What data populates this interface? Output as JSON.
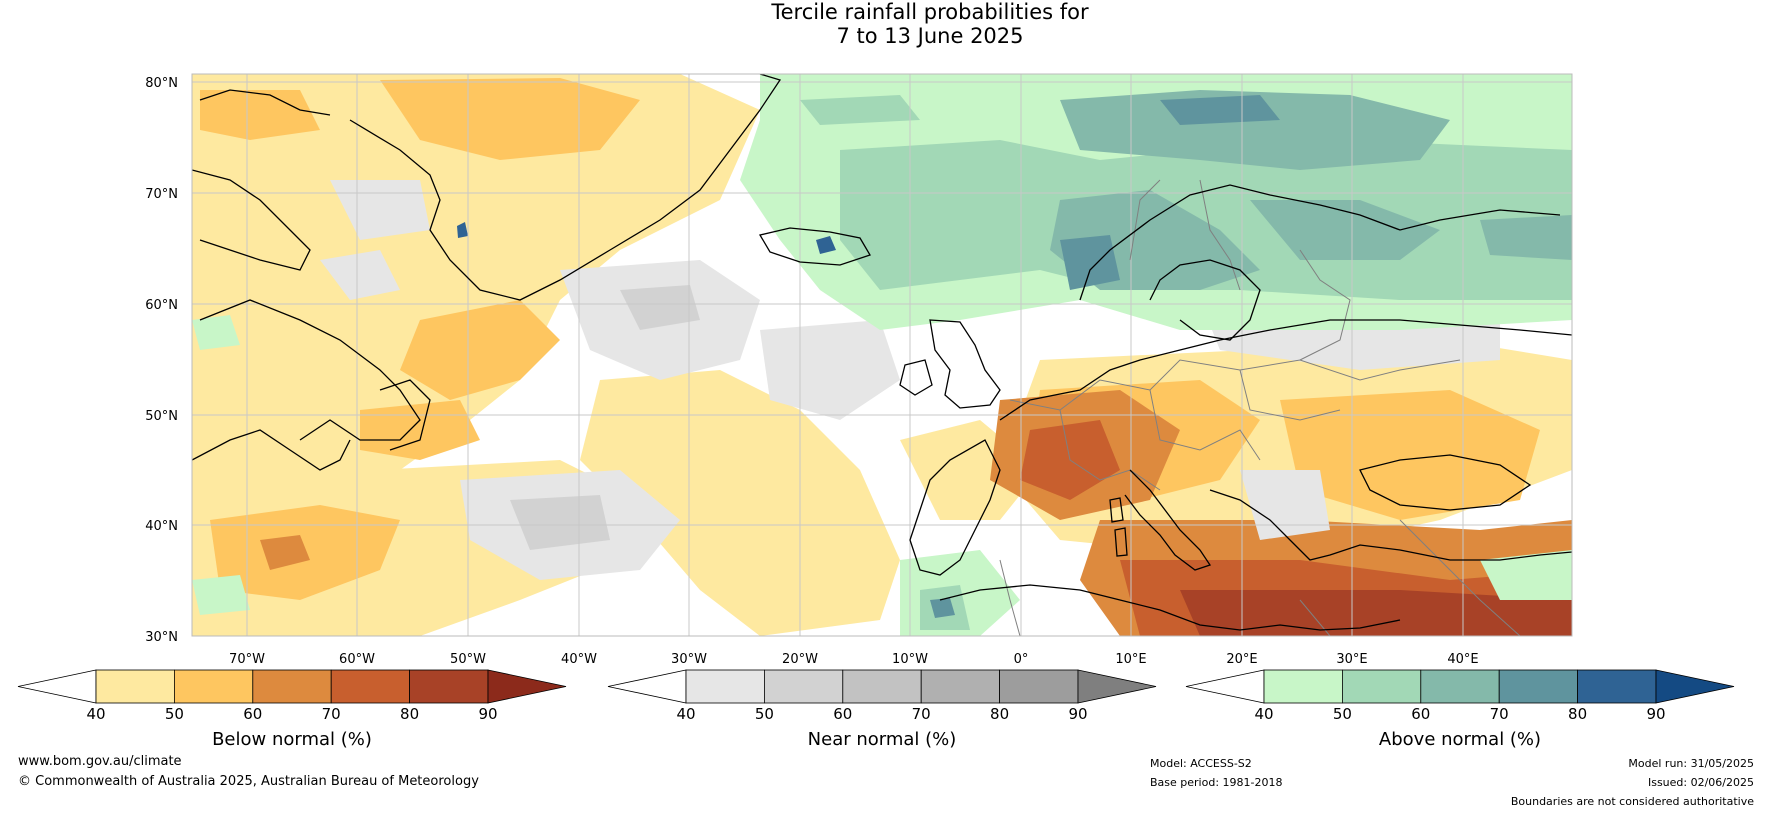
{
  "title": {
    "line1": "Tercile rainfall probabilities for",
    "line2": "7 to 13 June 2025"
  },
  "map": {
    "lat_labels": [
      "80°N",
      "70°N",
      "60°N",
      "50°N",
      "40°N",
      "30°N"
    ],
    "lon_labels": [
      "70°W",
      "60°W",
      "50°W",
      "40°W",
      "30°W",
      "20°W",
      "10°W",
      "0°",
      "10°E",
      "20°E",
      "30°E",
      "40°E"
    ],
    "extent": {
      "lon": [
        -80,
        45
      ],
      "lat": [
        30,
        81
      ]
    }
  },
  "colorbars": [
    {
      "id": "below",
      "label": "Below normal (%)",
      "ticks": [
        "40",
        "50",
        "60",
        "70",
        "80",
        "90"
      ],
      "colors": [
        "#ffffff",
        "#fee9a0",
        "#fec660",
        "#dd8a3e",
        "#c85f2e",
        "#a84227",
        "#8c2a1b"
      ]
    },
    {
      "id": "near",
      "label": "Near normal (%)",
      "ticks": [
        "40",
        "50",
        "60",
        "70",
        "80",
        "90"
      ],
      "colors": [
        "#ffffff",
        "#e6e6e6",
        "#d2d2d2",
        "#c2c2c2",
        "#b0b0b0",
        "#9d9d9d",
        "#7f7f7f"
      ]
    },
    {
      "id": "above",
      "label": "Above normal (%)",
      "ticks": [
        "40",
        "50",
        "60",
        "70",
        "80",
        "90"
      ],
      "colors": [
        "#ffffff",
        "#c8f6c8",
        "#a2d8b6",
        "#84b9aa",
        "#5f949e",
        "#2f6394",
        "#144a83"
      ]
    }
  ],
  "footer": {
    "website": "www.bom.gov.au/climate",
    "copyright": "© Commonwealth of Australia 2025, Australian Bureau of Meteorology",
    "model": "Model: ACCESS-S2",
    "base_period": "Base period: 1981-2018",
    "model_run": "Model run: 31/05/2025",
    "issued": "Issued: 02/06/2025",
    "disclaimer": "Boundaries are not considered authoritative"
  },
  "palette": {
    "below_light": "#fee9a0",
    "below_mid": "#fec660",
    "below_60": "#dd8a3e",
    "below_70": "#c85f2e",
    "below_80": "#a84227",
    "near_light": "#e6e6e6",
    "near_mid": "#d2d2d2",
    "above_light": "#c8f6c8",
    "above_mid": "#a2d8b6",
    "above_60": "#84b9aa",
    "above_70": "#5f949e",
    "above_80": "#2f6394",
    "coast": "#000000",
    "border": "#808080",
    "grid": "#c8c8c8"
  }
}
